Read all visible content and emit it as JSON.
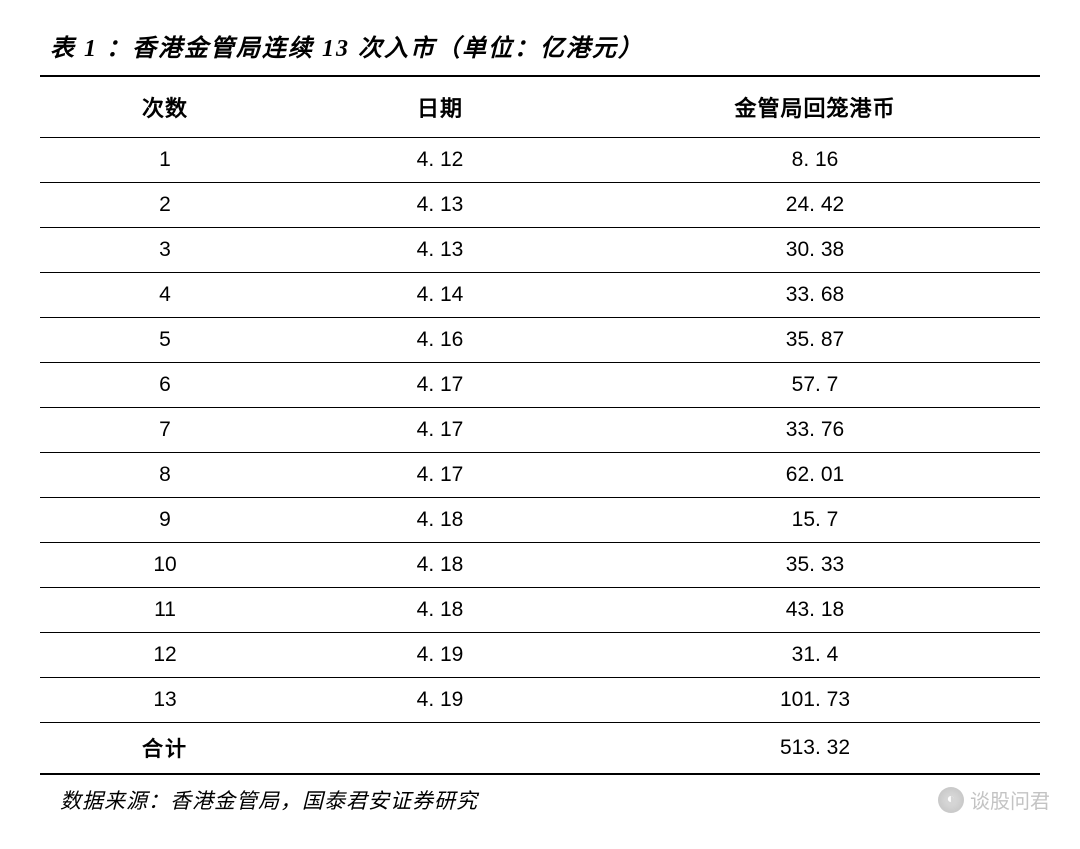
{
  "title": "表 1 ：香港金管局连续 13 次入市（单位：亿港元）",
  "table": {
    "columns": [
      "次数",
      "日期",
      "金管局回笼港币"
    ],
    "rows": [
      [
        "1",
        "4. 12",
        "8. 16"
      ],
      [
        "2",
        "4. 13",
        "24. 42"
      ],
      [
        "3",
        "4. 13",
        "30. 38"
      ],
      [
        "4",
        "4. 14",
        "33. 68"
      ],
      [
        "5",
        "4. 16",
        "35. 87"
      ],
      [
        "6",
        "4. 17",
        "57. 7"
      ],
      [
        "7",
        "4. 17",
        "33. 76"
      ],
      [
        "8",
        "4. 17",
        "62. 01"
      ],
      [
        "9",
        "4. 18",
        "15. 7"
      ],
      [
        "10",
        "4. 18",
        "35. 33"
      ],
      [
        "11",
        "4. 18",
        "43. 18"
      ],
      [
        "12",
        "4. 19",
        "31. 4"
      ],
      [
        "13",
        "4. 19",
        "101. 73"
      ]
    ],
    "total": {
      "label": "合计",
      "value": "513. 32"
    },
    "column_widths": [
      "25%",
      "30%",
      "45%"
    ],
    "header_fontsize": 22,
    "cell_fontsize": 21,
    "border_color": "#000000",
    "thick_border_width": 2.5,
    "thin_border_width": 1,
    "background_color": "#ffffff",
    "text_color": "#000000"
  },
  "source": "数据来源：香港金管局，国泰君安证券研究",
  "watermark": {
    "text": "谈股问君",
    "icon": "◐"
  }
}
